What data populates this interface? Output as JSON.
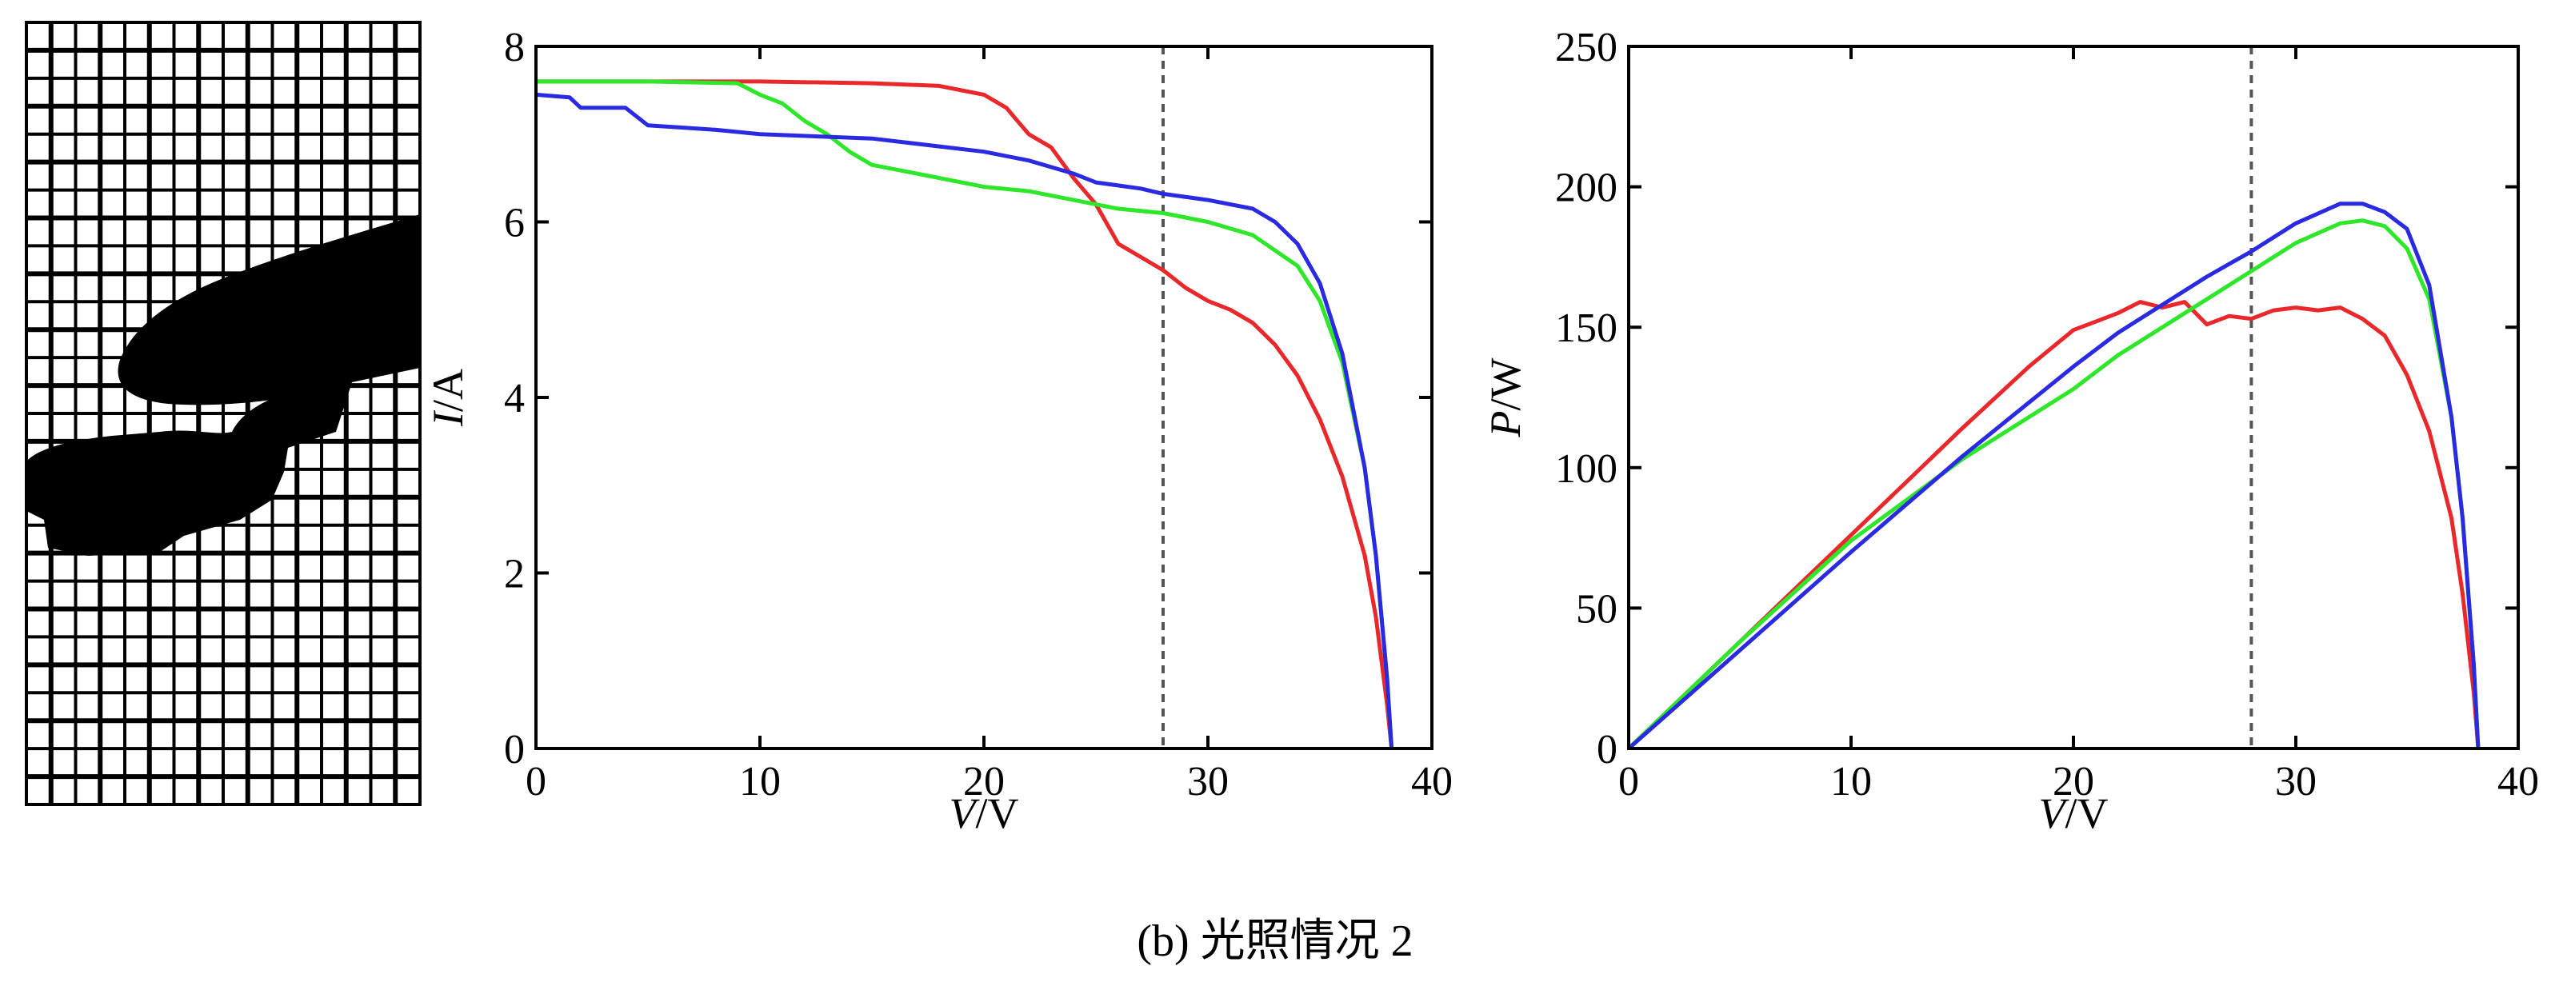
{
  "caption": "(b) 光照情况 2",
  "colors": {
    "red": "#e8282b",
    "green": "#2ee62a",
    "blue": "#2a2ae0",
    "dash": "#555555"
  },
  "illustration": {
    "name": "shaded-pv-array-grid",
    "rows": 28,
    "cols": 16
  },
  "chart_data": [
    {
      "type": "line",
      "xlabel_italic": "V",
      "xlabel_unit": "/V",
      "ylabel_italic": "I",
      "ylabel_unit": "/A",
      "xlim": [
        0,
        40
      ],
      "ylim": [
        0,
        8
      ],
      "xticks": [
        0,
        10,
        20,
        30,
        40
      ],
      "yticks": [
        0,
        2,
        4,
        6,
        8
      ],
      "xtick_labels": [
        "0",
        "10",
        "20",
        "30",
        "40"
      ],
      "ytick_labels": [
        "0",
        "2",
        "4",
        "6",
        "8"
      ],
      "grid": false,
      "vline": 28,
      "series": [
        {
          "color": "red",
          "points": [
            [
              0,
              7.6
            ],
            [
              5,
              7.6
            ],
            [
              10,
              7.6
            ],
            [
              15,
              7.58
            ],
            [
              18,
              7.55
            ],
            [
              20,
              7.45
            ],
            [
              21,
              7.3
            ],
            [
              22,
              7.0
            ],
            [
              23,
              6.85
            ],
            [
              24,
              6.5
            ],
            [
              25,
              6.2
            ],
            [
              26,
              5.75
            ],
            [
              27,
              5.6
            ],
            [
              28,
              5.45
            ],
            [
              29,
              5.25
            ],
            [
              30,
              5.1
            ],
            [
              31,
              5.0
            ],
            [
              32,
              4.85
            ],
            [
              33,
              4.6
            ],
            [
              34,
              4.25
            ],
            [
              35,
              3.75
            ],
            [
              36,
              3.1
            ],
            [
              37,
              2.2
            ],
            [
              37.5,
              1.5
            ],
            [
              38,
              0.5
            ],
            [
              38.2,
              0
            ]
          ]
        },
        {
          "color": "green",
          "points": [
            [
              0,
              7.6
            ],
            [
              5,
              7.6
            ],
            [
              9,
              7.58
            ],
            [
              10,
              7.45
            ],
            [
              11,
              7.35
            ],
            [
              12,
              7.15
            ],
            [
              13,
              7.0
            ],
            [
              14,
              6.8
            ],
            [
              15,
              6.65
            ],
            [
              17,
              6.55
            ],
            [
              20,
              6.4
            ],
            [
              22,
              6.35
            ],
            [
              24,
              6.25
            ],
            [
              26,
              6.15
            ],
            [
              28,
              6.1
            ],
            [
              30,
              6.0
            ],
            [
              32,
              5.85
            ],
            [
              34,
              5.5
            ],
            [
              35,
              5.1
            ],
            [
              36,
              4.4
            ],
            [
              37,
              3.2
            ],
            [
              37.5,
              2.2
            ],
            [
              38,
              0.8
            ],
            [
              38.2,
              0
            ]
          ]
        },
        {
          "color": "blue",
          "points": [
            [
              0,
              7.45
            ],
            [
              1.5,
              7.42
            ],
            [
              2,
              7.3
            ],
            [
              4,
              7.3
            ],
            [
              5,
              7.1
            ],
            [
              8,
              7.05
            ],
            [
              10,
              7.0
            ],
            [
              15,
              6.95
            ],
            [
              20,
              6.8
            ],
            [
              22,
              6.7
            ],
            [
              24,
              6.55
            ],
            [
              25,
              6.45
            ],
            [
              27,
              6.38
            ],
            [
              28,
              6.32
            ],
            [
              30,
              6.25
            ],
            [
              32,
              6.15
            ],
            [
              33,
              6.0
            ],
            [
              34,
              5.75
            ],
            [
              35,
              5.3
            ],
            [
              36,
              4.5
            ],
            [
              37,
              3.2
            ],
            [
              37.5,
              2.2
            ],
            [
              38,
              0.8
            ],
            [
              38.2,
              0
            ]
          ]
        }
      ]
    },
    {
      "type": "line",
      "xlabel_italic": "V",
      "xlabel_unit": "/V",
      "ylabel_italic": "P",
      "ylabel_unit": "/W",
      "xlim": [
        0,
        40
      ],
      "ylim": [
        0,
        250
      ],
      "xticks": [
        0,
        10,
        20,
        30,
        40
      ],
      "yticks": [
        0,
        50,
        100,
        150,
        200,
        250
      ],
      "xtick_labels": [
        "0",
        "10",
        "20",
        "30",
        "40"
      ],
      "ytick_labels": [
        "0",
        "50",
        "100",
        "150",
        "200",
        "250"
      ],
      "grid": false,
      "vline": 28,
      "series": [
        {
          "color": "red",
          "points": [
            [
              0,
              0
            ],
            [
              5,
              38
            ],
            [
              10,
              76
            ],
            [
              15,
              114
            ],
            [
              18,
              136
            ],
            [
              20,
              149
            ],
            [
              21,
              152
            ],
            [
              22,
              155
            ],
            [
              23,
              159
            ],
            [
              24,
              157
            ],
            [
              25,
              159
            ],
            [
              26,
              151
            ],
            [
              27,
              154
            ],
            [
              28,
              153
            ],
            [
              29,
              156
            ],
            [
              30,
              157
            ],
            [
              31,
              156
            ],
            [
              32,
              157
            ],
            [
              33,
              153
            ],
            [
              34,
              147
            ],
            [
              35,
              133
            ],
            [
              36,
              113
            ],
            [
              37,
              82
            ],
            [
              37.5,
              55
            ],
            [
              38,
              20
            ],
            [
              38.2,
              0
            ]
          ]
        },
        {
          "color": "green",
          "points": [
            [
              0,
              0
            ],
            [
              5,
              38
            ],
            [
              10,
              74
            ],
            [
              15,
              103
            ],
            [
              20,
              128
            ],
            [
              22,
              140
            ],
            [
              24,
              150
            ],
            [
              26,
              160
            ],
            [
              28,
              170
            ],
            [
              30,
              180
            ],
            [
              32,
              187
            ],
            [
              33,
              188
            ],
            [
              34,
              186
            ],
            [
              35,
              178
            ],
            [
              36,
              160
            ],
            [
              37,
              118
            ],
            [
              37.5,
              82
            ],
            [
              38,
              30
            ],
            [
              38.2,
              0
            ]
          ]
        },
        {
          "color": "blue",
          "points": [
            [
              0,
              0
            ],
            [
              5,
              35
            ],
            [
              10,
              70
            ],
            [
              15,
              104
            ],
            [
              20,
              136
            ],
            [
              22,
              148
            ],
            [
              24,
              158
            ],
            [
              26,
              168
            ],
            [
              28,
              177
            ],
            [
              30,
              187
            ],
            [
              32,
              194
            ],
            [
              33,
              194
            ],
            [
              34,
              191
            ],
            [
              35,
              185
            ],
            [
              36,
              165
            ],
            [
              37,
              118
            ],
            [
              37.5,
              82
            ],
            [
              38,
              30
            ],
            [
              38.2,
              0
            ]
          ]
        }
      ]
    }
  ]
}
